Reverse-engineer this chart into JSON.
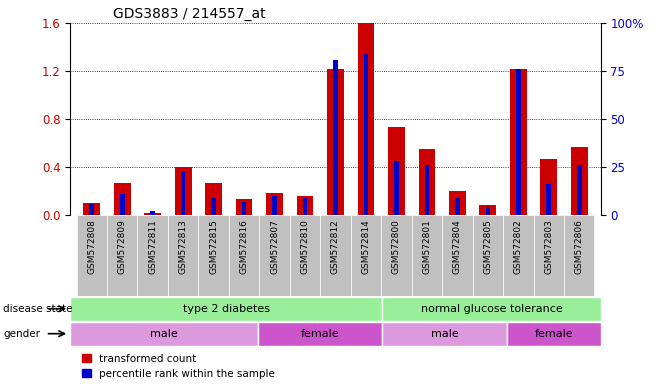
{
  "title": "GDS3883 / 214557_at",
  "samples": [
    "GSM572808",
    "GSM572809",
    "GSM572811",
    "GSM572813",
    "GSM572815",
    "GSM572816",
    "GSM572807",
    "GSM572810",
    "GSM572812",
    "GSM572814",
    "GSM572800",
    "GSM572801",
    "GSM572804",
    "GSM572805",
    "GSM572802",
    "GSM572803",
    "GSM572806"
  ],
  "red_values": [
    0.1,
    0.27,
    0.02,
    0.4,
    0.27,
    0.13,
    0.18,
    0.16,
    1.22,
    1.6,
    0.73,
    0.55,
    0.2,
    0.08,
    1.22,
    0.47,
    0.57
  ],
  "blue_pct": [
    6,
    11,
    2,
    23,
    9,
    7,
    10,
    9,
    81,
    84,
    28,
    26,
    9,
    4,
    76,
    16,
    26
  ],
  "ylim_left": [
    0,
    1.6
  ],
  "ylim_right": [
    0,
    100
  ],
  "yticks_left": [
    0,
    0.4,
    0.8,
    1.2,
    1.6
  ],
  "yticks_right": [
    0,
    25,
    50,
    75,
    100
  ],
  "red_color": "#CC0000",
  "blue_color": "#0000CC",
  "legend_labels": [
    "transformed count",
    "percentile rank within the sample"
  ],
  "red_bar_width": 0.55,
  "blue_bar_width": 0.15,
  "background_color": "#ffffff",
  "tick_label_color_left": "#CC0000",
  "tick_label_color_right": "#0000CC",
  "sample_label_bg": "#c0c0c0",
  "disease_state_color": "#99ee99",
  "male_color": "#dd99dd",
  "female_color": "#cc55cc",
  "ds_groups": [
    {
      "label": "type 2 diabetes",
      "start": 0,
      "end": 10
    },
    {
      "label": "normal glucose tolerance",
      "start": 10,
      "end": 17
    }
  ],
  "gender_segments": [
    {
      "label": "male",
      "start": 0,
      "end": 6
    },
    {
      "label": "female",
      "start": 6,
      "end": 10
    },
    {
      "label": "male",
      "start": 10,
      "end": 14
    },
    {
      "label": "female",
      "start": 14,
      "end": 17
    }
  ]
}
